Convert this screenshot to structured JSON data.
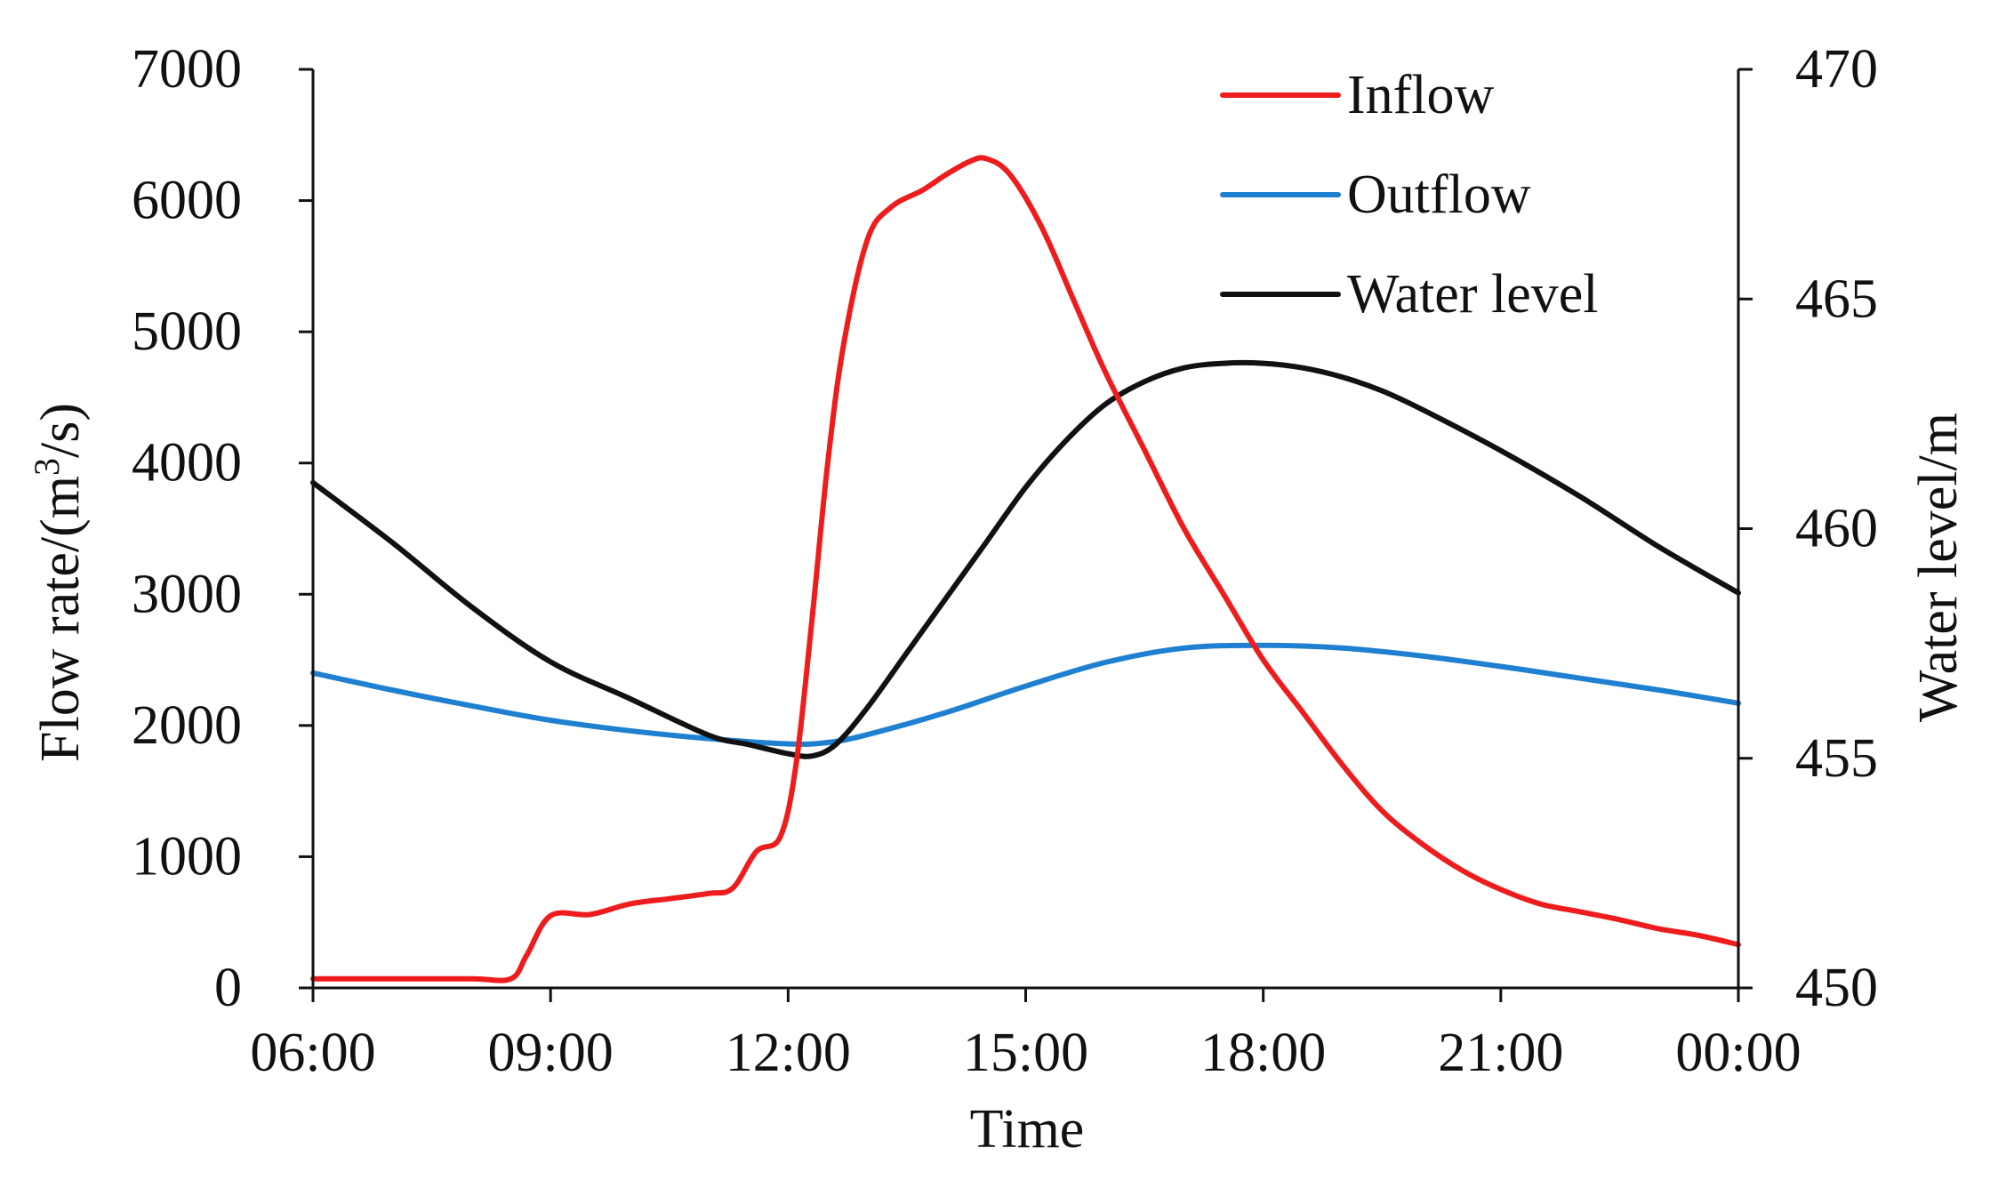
{
  "chart_data": {
    "type": "line",
    "xlabel": "Time",
    "ylabel": "Flow rate/(m³/s)",
    "ylabel_parts": {
      "main": "Flow rate/(m",
      "sup": "3",
      "tail": "/s)"
    },
    "y2label": "Water level/m",
    "x_ticks": [
      "06:00",
      "09:00",
      "12:00",
      "15:00",
      "18:00",
      "21:00",
      "00:00"
    ],
    "xlim": [
      6,
      24
    ],
    "ylim": [
      0,
      7000
    ],
    "y_ticks": [
      "0",
      "1000",
      "2000",
      "3000",
      "4000",
      "5000",
      "6000",
      "7000"
    ],
    "y2lim": [
      450,
      470
    ],
    "y2_ticks": [
      "450",
      "455",
      "460",
      "465",
      "470"
    ],
    "grid": false,
    "legend_position": "top-right",
    "series": [
      {
        "name": "Inflow",
        "axis": "left",
        "color": "#ee1c1c",
        "x": [
          6,
          7,
          8,
          8.5,
          8.7,
          9.0,
          9.5,
          10.0,
          10.5,
          11.0,
          11.3,
          11.6,
          11.9,
          12.1,
          12.3,
          12.5,
          12.7,
          13.0,
          13.3,
          13.7,
          14.0,
          14.3,
          14.5,
          14.8,
          15.2,
          15.6,
          16.0,
          16.5,
          17.0,
          17.5,
          18.0,
          18.5,
          19.0,
          19.5,
          20.0,
          20.5,
          21.0,
          21.5,
          22.0,
          22.5,
          23.0,
          23.5,
          24.0
        ],
        "values": [
          70,
          70,
          70,
          70,
          250,
          550,
          560,
          640,
          680,
          720,
          760,
          1040,
          1150,
          1700,
          2800,
          4000,
          4900,
          5700,
          5950,
          6080,
          6200,
          6300,
          6320,
          6200,
          5800,
          5250,
          4700,
          4100,
          3500,
          3000,
          2500,
          2100,
          1700,
          1350,
          1100,
          900,
          750,
          640,
          580,
          520,
          450,
          400,
          330
        ]
      },
      {
        "name": "Outflow",
        "axis": "left",
        "color": "#1f7fd0",
        "x": [
          6,
          7,
          8,
          9,
          10,
          11,
          12,
          12.5,
          13,
          14,
          15,
          16,
          17,
          18,
          19,
          20,
          21,
          22,
          23,
          24
        ],
        "values": [
          2400,
          2270,
          2150,
          2040,
          1960,
          1900,
          1860,
          1870,
          1930,
          2100,
          2300,
          2480,
          2590,
          2610,
          2590,
          2530,
          2450,
          2360,
          2270,
          2170
        ]
      },
      {
        "name": "Water level",
        "axis": "right",
        "color": "#111111",
        "x": [
          6,
          7,
          8,
          9,
          10,
          11,
          11.5,
          12,
          12.3,
          12.6,
          13,
          13.5,
          14,
          14.5,
          15,
          15.5,
          16,
          16.5,
          17,
          17.5,
          18,
          18.5,
          19,
          19.5,
          20,
          21,
          22,
          23,
          24
        ],
        "values": [
          461.0,
          459.7,
          458.3,
          457.1,
          456.3,
          455.5,
          455.3,
          455.1,
          455.05,
          455.3,
          456.1,
          457.3,
          458.5,
          459.7,
          460.9,
          461.9,
          462.7,
          463.2,
          463.5,
          463.6,
          463.6,
          463.5,
          463.3,
          463.0,
          462.6,
          461.7,
          460.7,
          459.6,
          458.6
        ]
      }
    ]
  }
}
